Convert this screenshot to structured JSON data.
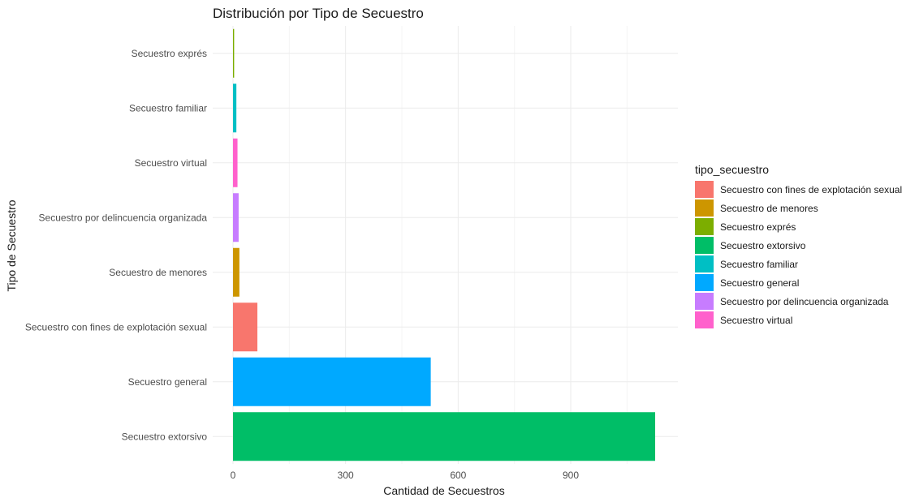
{
  "chart_data": {
    "type": "bar",
    "orientation": "horizontal",
    "title": "Distribución por Tipo de Secuestro",
    "xlabel": "Cantidad de Secuestros",
    "ylabel": "Tipo de Secuestro",
    "xlim": [
      0,
      1180
    ],
    "x_ticks": [
      0,
      300,
      600,
      900
    ],
    "x_tick_labels": [
      "0",
      "300",
      "600",
      "900"
    ],
    "grid": true,
    "categories": [
      "Secuestro exprés",
      "Secuestro familiar",
      "Secuestro virtual",
      "Secuestro por delincuencia organizada",
      "Secuestro de menores",
      "Secuestro con fines de explotación sexual",
      "Secuestro general",
      "Secuestro extorsivo"
    ],
    "values": [
      3,
      9,
      12,
      15,
      17,
      65,
      527,
      1125
    ],
    "colors": [
      "#7CAE00",
      "#00BFC4",
      "#FF61CC",
      "#C77CFF",
      "#CD9600",
      "#F8766D",
      "#00A9FF",
      "#00BE67"
    ],
    "legend": {
      "title": "tipo_secuestro",
      "placement": "right",
      "items": [
        {
          "label": "Secuestro con fines de explotación sexual",
          "color": "#F8766D"
        },
        {
          "label": "Secuestro de menores",
          "color": "#CD9600"
        },
        {
          "label": "Secuestro exprés",
          "color": "#7CAE00"
        },
        {
          "label": "Secuestro extorsivo",
          "color": "#00BE67"
        },
        {
          "label": "Secuestro familiar",
          "color": "#00BFC4"
        },
        {
          "label": "Secuestro general",
          "color": "#00A9FF"
        },
        {
          "label": "Secuestro por delincuencia organizada",
          "color": "#C77CFF"
        },
        {
          "label": "Secuestro virtual",
          "color": "#FF61CC"
        }
      ]
    }
  }
}
